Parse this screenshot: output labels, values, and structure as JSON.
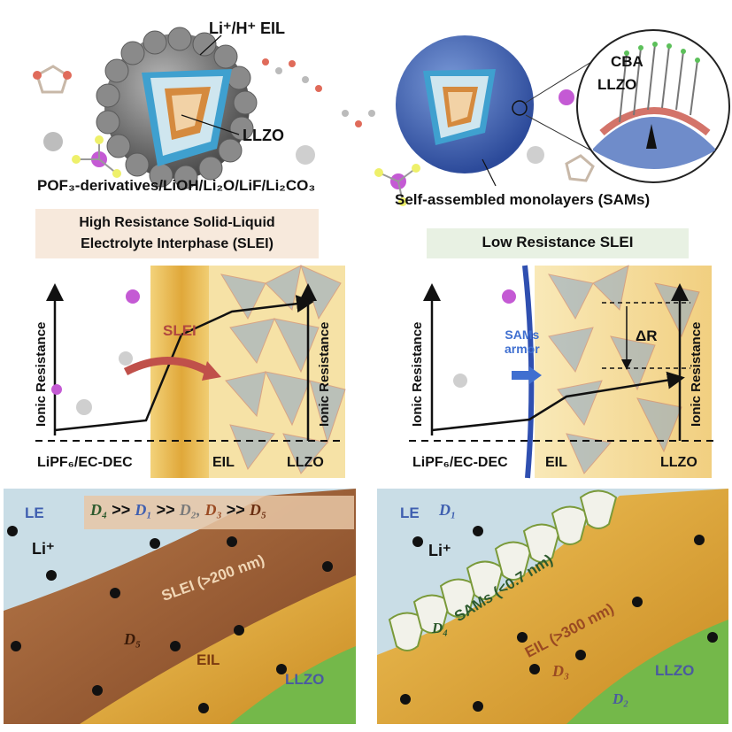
{
  "top_left": {
    "eil_label": "Li⁺/H⁺ EIL",
    "llzo_label": "LLZO",
    "formula": "POF₃-derivatives/LiOH/Li₂O/LiF/Li₂CO₃",
    "banner": [
      "High Resistance Solid-Liquid",
      "Electrolyte Interphase (SLEI)"
    ]
  },
  "top_right": {
    "cba_label": "CBA",
    "llzo_label": "LLZO",
    "sams_label": "Self-assembled monolayers (SAMs)",
    "banner": "Low Resistance SLEI"
  },
  "mid_left": {
    "y_label_left": "Ionic Resistance",
    "y_label_right": "Ionic Resistance",
    "slei": "SLEI",
    "electrolyte": "LiPF₆/EC-DEC",
    "eil": "EIL",
    "llzo": "LLZO"
  },
  "mid_right": {
    "y_label_left": "Ionic Resistance",
    "y_label_right": "Ionic Resistance",
    "sams_armor": [
      "SAMs",
      "armor"
    ],
    "delta_r": "ΔR",
    "electrolyte": "LiPF₆/EC-DEC",
    "eil": "EIL",
    "llzo": "LLZO"
  },
  "bottom_left": {
    "le": "LE",
    "li": "Li⁺",
    "ranking": [
      "D₄",
      ">>",
      "D₁",
      ">>",
      "D₂,",
      "D₃",
      ">>",
      "D₅"
    ],
    "slei": "SLEI (>200 nm)",
    "d5": "D₅",
    "eil": "EIL",
    "llzo": "LLZO"
  },
  "bottom_right": {
    "le": "LE",
    "d1": "D₁",
    "li": "Li⁺",
    "sams": "SAMs (<0.7 nm)",
    "d4": "D₄",
    "eil": "EIL (>300 nm)",
    "d3": "D₃",
    "llzo": "LLZO",
    "d2": "D₂"
  },
  "colors": {
    "electrolyte_bg": "#c9dde6",
    "slei_brown": "#9a5a2e",
    "eil_yellow": "#e2b23c",
    "llzo_green": "#74b84a",
    "sams_blue": "#3f5fb0",
    "banner_left": "#f7e9dc",
    "banner_right": "#e8f1e3"
  }
}
